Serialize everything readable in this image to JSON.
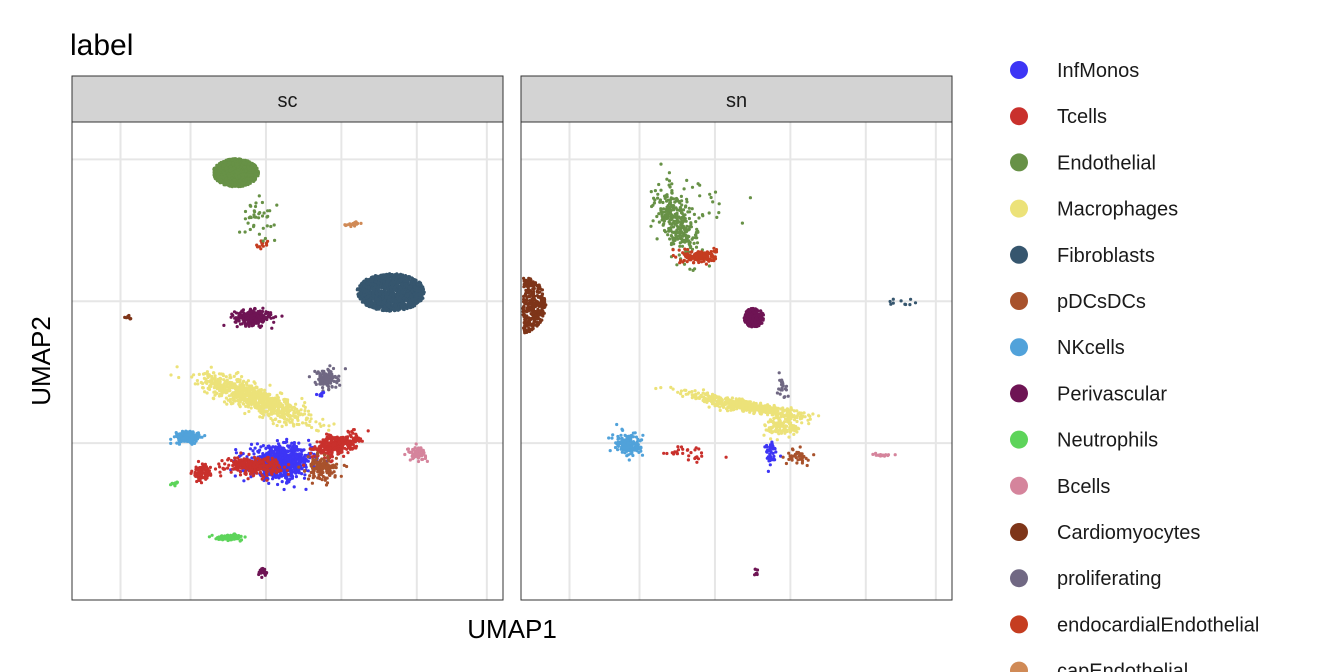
{
  "chart_data": {
    "type": "scatter",
    "title": "label",
    "xlabel": "UMAP1",
    "ylabel": "UMAP2",
    "facets": [
      "sc",
      "sn"
    ],
    "grid": true,
    "legend_position": "right",
    "legend": [
      {
        "name": "InfMonos",
        "color": "#3D35F5"
      },
      {
        "name": "Tcells",
        "color": "#C9302C"
      },
      {
        "name": "Endothelial",
        "color": "#679146"
      },
      {
        "name": "Macrophages",
        "color": "#ECE279"
      },
      {
        "name": "Fibroblasts",
        "color": "#36566E"
      },
      {
        "name": "pDCsDCs",
        "color": "#A8522C"
      },
      {
        "name": "NKcells",
        "color": "#51A2DA"
      },
      {
        "name": "Perivascular",
        "color": "#6E1454"
      },
      {
        "name": "Neutrophils",
        "color": "#5DD45A"
      },
      {
        "name": "Bcells",
        "color": "#D5849C"
      },
      {
        "name": "Cardiomyocytes",
        "color": "#7E3519"
      },
      {
        "name": "proliferating",
        "color": "#706883"
      },
      {
        "name": "endocardialEndothelial",
        "color": "#C53D20"
      },
      {
        "name": "capEndothelial",
        "color": "#D08A56"
      }
    ],
    "clusters": {
      "sc": [
        {
          "label": "Endothelial",
          "x": -3.4,
          "y": 8.6,
          "sx": 1.0,
          "sy": 0.9,
          "n": 1100,
          "ring": 1,
          "a": 0
        },
        {
          "label": "Fibroblasts",
          "x": 3.8,
          "y": 0.6,
          "sx": 1.5,
          "sy": 1.2,
          "n": 1300,
          "ring": 1,
          "a": 0
        },
        {
          "label": "capEndothelial",
          "x": 2.1,
          "y": 5.2,
          "sx": 0.35,
          "sy": 0.1,
          "n": 20,
          "ring": 0,
          "a": 0.3
        },
        {
          "label": "endocardialEndothelial",
          "x": -2.2,
          "y": 3.8,
          "sx": 0.2,
          "sy": 0.2,
          "n": 12,
          "ring": 0,
          "a": 0
        },
        {
          "label": "Perivascular",
          "x": -2.6,
          "y": -1.1,
          "sx": 0.6,
          "sy": 0.35,
          "n": 260,
          "ring": 0,
          "a": 0
        },
        {
          "label": "Cardiomyocytes",
          "x": -8.4,
          "y": -1.1,
          "sx": 0.1,
          "sy": 0.08,
          "n": 8,
          "ring": 0,
          "a": 0
        },
        {
          "label": "Macrophages",
          "x": -2.5,
          "y": -6.5,
          "sx": 2.0,
          "sy": 0.55,
          "n": 800,
          "ring": 0,
          "a": -0.55
        },
        {
          "label": "proliferating",
          "x": 0.8,
          "y": -5.2,
          "sx": 0.35,
          "sy": 0.45,
          "n": 130,
          "ring": 0,
          "a": 0
        },
        {
          "label": "InfMonos",
          "x": -1.3,
          "y": -10.8,
          "sx": 1.0,
          "sy": 0.75,
          "n": 800,
          "ring": 0,
          "a": 0
        },
        {
          "label": "Tcells",
          "x": -2.6,
          "y": -11.0,
          "sx": 0.9,
          "sy": 0.4,
          "n": 280,
          "ring": 0,
          "a": 0
        },
        {
          "label": "Tcells",
          "x": 1.3,
          "y": -9.6,
          "sx": 0.8,
          "sy": 0.45,
          "n": 300,
          "ring": 0,
          "a": 0.5
        },
        {
          "label": "Tcells",
          "x": -5.0,
          "y": -11.5,
          "sx": 0.3,
          "sy": 0.4,
          "n": 80,
          "ring": 0,
          "a": 0
        },
        {
          "label": "pDCsDCs",
          "x": 0.6,
          "y": -11.2,
          "sx": 0.5,
          "sy": 0.55,
          "n": 140,
          "ring": 0,
          "a": 0
        },
        {
          "label": "NKcells",
          "x": -5.6,
          "y": -9.1,
          "sx": 0.45,
          "sy": 0.3,
          "n": 160,
          "ring": 0,
          "a": 0
        },
        {
          "label": "Bcells",
          "x": 5.0,
          "y": -10.2,
          "sx": 0.3,
          "sy": 0.3,
          "n": 70,
          "ring": 0,
          "a": 0
        },
        {
          "label": "Neutrophils",
          "x": -3.7,
          "y": -15.8,
          "sx": 0.45,
          "sy": 0.12,
          "n": 90,
          "ring": 0,
          "a": 0
        },
        {
          "label": "Neutrophils",
          "x": -6.2,
          "y": -12.2,
          "sx": 0.2,
          "sy": 0.1,
          "n": 10,
          "ring": 0,
          "a": 0
        },
        {
          "label": "Perivascular",
          "x": -2.1,
          "y": -18.1,
          "sx": 0.15,
          "sy": 0.2,
          "n": 25,
          "ring": 0,
          "a": 0
        },
        {
          "label": "InfMonos",
          "x": 0.6,
          "y": -6.2,
          "sx": 0.15,
          "sy": 0.15,
          "n": 10,
          "ring": 0,
          "a": 0
        },
        {
          "label": "Endothelial",
          "x": -2.4,
          "y": 5.6,
          "sx": 0.6,
          "sy": 0.8,
          "n": 40,
          "ring": 0,
          "a": 0
        }
      ],
      "sn": [
        {
          "label": "Endothelial",
          "x": -3.8,
          "y": 5.3,
          "sx": 0.55,
          "sy": 1.7,
          "n": 300,
          "ring": 0,
          "a": 0.25
        },
        {
          "label": "endocardialEndothelial",
          "x": -2.7,
          "y": 3.0,
          "sx": 0.55,
          "sy": 0.3,
          "n": 170,
          "ring": 0,
          "a": 0
        },
        {
          "label": "Cardiomyocytes",
          "x": -11.1,
          "y": -0.2,
          "sx": 1.2,
          "sy": 1.9,
          "n": 800,
          "ring": 1,
          "a": 0
        },
        {
          "label": "Perivascular",
          "x": -0.2,
          "y": -1.1,
          "sx": 0.45,
          "sy": 0.6,
          "n": 220,
          "ring": 1,
          "a": 0
        },
        {
          "label": "Macrophages",
          "x": -0.6,
          "y": -7.0,
          "sx": 2.1,
          "sy": 0.28,
          "n": 480,
          "ring": 0,
          "a": -0.28
        },
        {
          "label": "Macrophages",
          "x": 1.2,
          "y": -8.4,
          "sx": 0.6,
          "sy": 0.45,
          "n": 120,
          "ring": 0,
          "a": 0
        },
        {
          "label": "NKcells",
          "x": -6.0,
          "y": -9.6,
          "sx": 0.45,
          "sy": 0.55,
          "n": 150,
          "ring": 0,
          "a": 0.3
        },
        {
          "label": "InfMonos",
          "x": 0.6,
          "y": -10.3,
          "sx": 0.2,
          "sy": 0.7,
          "n": 40,
          "ring": 0,
          "a": 0
        },
        {
          "label": "pDCsDCs",
          "x": 1.8,
          "y": -10.4,
          "sx": 0.35,
          "sy": 0.35,
          "n": 40,
          "ring": 0,
          "a": 0
        },
        {
          "label": "Tcells",
          "x": -3.2,
          "y": -10.2,
          "sx": 1.0,
          "sy": 0.4,
          "n": 30,
          "ring": 0,
          "a": 0
        },
        {
          "label": "proliferating",
          "x": 1.1,
          "y": -5.8,
          "sx": 0.2,
          "sy": 0.5,
          "n": 20,
          "ring": 0,
          "a": 0
        },
        {
          "label": "Fibroblasts",
          "x": 6.6,
          "y": -0.1,
          "sx": 0.7,
          "sy": 0.3,
          "n": 10,
          "ring": 0,
          "a": 0
        },
        {
          "label": "Bcells",
          "x": 5.7,
          "y": -10.3,
          "sx": 0.3,
          "sy": 0.05,
          "n": 20,
          "ring": 0,
          "a": 0
        },
        {
          "label": "Perivascular",
          "x": -0.1,
          "y": -18.1,
          "sx": 0.08,
          "sy": 0.2,
          "n": 8,
          "ring": 0,
          "a": 0
        },
        {
          "label": "Endothelial",
          "x": -2.2,
          "y": 7.0,
          "sx": 0.8,
          "sy": 1.2,
          "n": 20,
          "ring": 0,
          "a": 0
        }
      ]
    }
  }
}
